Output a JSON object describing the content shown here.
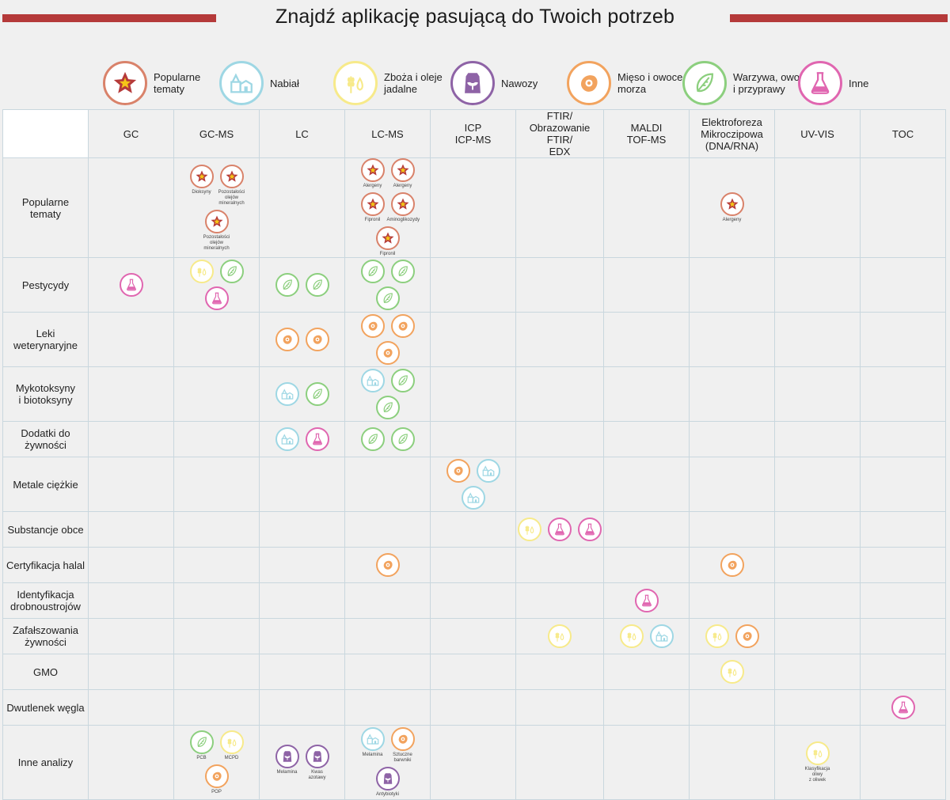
{
  "title": "Znajdź aplikację pasującą do Twoich potrzeb",
  "colors": {
    "accent_bar": "#b53a3a",
    "star": "#d9826a",
    "dairy": "#9ed7e4",
    "grain": "#f7ea8a",
    "fertilizer": "#8e63a6",
    "meat": "#f2a35e",
    "veg": "#8ccf7e",
    "other": "#e066b0"
  },
  "legend": [
    {
      "icon": "star-icon",
      "label_lines": [
        "Popularne",
        "tematy"
      ]
    },
    {
      "icon": "dairy-icon",
      "label_lines": [
        "Nabiał"
      ]
    },
    {
      "icon": "grain-icon",
      "label_lines": [
        "Zboża i oleje",
        "jadalne"
      ]
    },
    {
      "icon": "fertilizer-icon",
      "label_lines": [
        "Nawozy"
      ]
    },
    {
      "icon": "meat-icon",
      "label_lines": [
        "Mięso i owoce",
        "morza"
      ]
    },
    {
      "icon": "veg-icon",
      "label_lines": [
        "Warzywa, owoce",
        "i przyprawy"
      ]
    },
    {
      "icon": "other-icon",
      "label_lines": [
        "Inne"
      ]
    }
  ],
  "columns": [
    [
      "GC"
    ],
    [
      "GC-MS"
    ],
    [
      "LC"
    ],
    [
      "LC-MS"
    ],
    [
      "ICP",
      "ICP-MS"
    ],
    [
      "FTIR/",
      "Obrazowanie FTIR/",
      "EDX"
    ],
    [
      "MALDI",
      "TOF-MS"
    ],
    [
      "Elektroforeza",
      "Mikroczipowa",
      "(DNA/RNA)"
    ],
    [
      "UV-VIS"
    ],
    [
      "TOC"
    ]
  ],
  "rows": [
    {
      "label": [
        "Popularne",
        "tematy"
      ],
      "cells": [
        [],
        [
          {
            "i": "star",
            "c": [
              "Dioksyny"
            ]
          },
          {
            "i": "star",
            "c": [
              "Pozostałości",
              "olejów",
              "mineralnych"
            ]
          },
          {
            "i": "star",
            "c": [
              "Pozostałości",
              "olejów",
              "mineralnych"
            ]
          }
        ],
        [],
        [
          {
            "i": "star",
            "c": [
              "Alergeny"
            ]
          },
          {
            "i": "star",
            "c": [
              "Alergeny"
            ]
          },
          {
            "i": "star",
            "c": [
              "Fipronil"
            ]
          },
          {
            "i": "star",
            "c": [
              "Aminoglikozydy"
            ]
          },
          {
            "i": "star",
            "c": [
              "Fipronil"
            ]
          }
        ],
        [],
        [],
        [],
        [
          {
            "i": "star",
            "c": [
              "Alergeny"
            ]
          }
        ],
        [],
        []
      ]
    },
    {
      "label": [
        "Pestycydy"
      ],
      "cells": [
        [
          {
            "i": "other"
          }
        ],
        [
          {
            "i": "grain"
          },
          {
            "i": "veg"
          },
          {
            "i": "other"
          }
        ],
        [
          {
            "i": "veg"
          },
          {
            "i": "veg"
          }
        ],
        [
          {
            "i": "veg"
          },
          {
            "i": "veg"
          },
          {
            "i": "veg"
          }
        ],
        [],
        [],
        [],
        [],
        [],
        []
      ]
    },
    {
      "label": [
        "Leki",
        "weterynaryjne"
      ],
      "cells": [
        [],
        [],
        [
          {
            "i": "meat"
          },
          {
            "i": "meat"
          }
        ],
        [
          {
            "i": "meat"
          },
          {
            "i": "meat"
          },
          {
            "i": "meat"
          }
        ],
        [],
        [],
        [],
        [],
        [],
        []
      ]
    },
    {
      "label": [
        "Mykotoksyny",
        "i biotoksyny"
      ],
      "cells": [
        [],
        [],
        [
          {
            "i": "dairy"
          },
          {
            "i": "veg"
          }
        ],
        [
          {
            "i": "dairy"
          },
          {
            "i": "veg"
          },
          {
            "i": "veg"
          }
        ],
        [],
        [],
        [],
        [],
        [],
        []
      ]
    },
    {
      "label": [
        "Dodatki do",
        "żywności"
      ],
      "cells": [
        [],
        [],
        [
          {
            "i": "dairy"
          },
          {
            "i": "other"
          }
        ],
        [
          {
            "i": "veg"
          },
          {
            "i": "veg"
          }
        ],
        [],
        [],
        [],
        [],
        [],
        []
      ]
    },
    {
      "label": [
        "Metale ciężkie"
      ],
      "cells": [
        [],
        [],
        [],
        [],
        [
          {
            "i": "meat"
          },
          {
            "i": "dairy"
          },
          {
            "i": "dairy"
          }
        ],
        [],
        [],
        [],
        [],
        []
      ]
    },
    {
      "label": [
        "Substancje obce"
      ],
      "cells": [
        [],
        [],
        [],
        [],
        [],
        [
          {
            "i": "grain"
          },
          {
            "i": "other"
          },
          {
            "i": "other"
          }
        ],
        [],
        [],
        [],
        []
      ]
    },
    {
      "label": [
        "Certyfikacja halal"
      ],
      "cells": [
        [],
        [],
        [],
        [
          {
            "i": "meat"
          }
        ],
        [],
        [],
        [],
        [
          {
            "i": "meat"
          }
        ],
        [],
        []
      ]
    },
    {
      "label": [
        "Identyfikacja",
        "drobnoustrojów"
      ],
      "cells": [
        [],
        [],
        [],
        [],
        [],
        [],
        [
          {
            "i": "other"
          }
        ],
        [],
        [],
        []
      ]
    },
    {
      "label": [
        "Zafałszowania",
        "żywności"
      ],
      "cells": [
        [],
        [],
        [],
        [],
        [],
        [
          {
            "i": "grain"
          }
        ],
        [
          {
            "i": "grain"
          },
          {
            "i": "dairy"
          }
        ],
        [
          {
            "i": "grain"
          },
          {
            "i": "meat"
          }
        ],
        [],
        []
      ]
    },
    {
      "label": [
        "GMO"
      ],
      "cells": [
        [],
        [],
        [],
        [],
        [],
        [],
        [],
        [
          {
            "i": "grain"
          }
        ],
        [],
        []
      ]
    },
    {
      "label": [
        "Dwutlenek węgla"
      ],
      "cells": [
        [],
        [],
        [],
        [],
        [],
        [],
        [],
        [],
        [],
        [
          {
            "i": "other"
          }
        ]
      ]
    },
    {
      "label": [
        "Inne analizy"
      ],
      "cells": [
        [],
        [
          {
            "i": "veg",
            "c": [
              "PCB"
            ]
          },
          {
            "i": "grain",
            "c": [
              "MCPD"
            ]
          },
          {
            "i": "meat",
            "c": [
              "POP"
            ]
          }
        ],
        [
          {
            "i": "fertilizer",
            "c": [
              "Melamina"
            ]
          },
          {
            "i": "fertilizer",
            "c": [
              "Kwas",
              "azotawy"
            ]
          }
        ],
        [
          {
            "i": "dairy",
            "c": [
              "Melamina"
            ]
          },
          {
            "i": "meat",
            "c": [
              "Sztuczne",
              "barwniki"
            ]
          },
          {
            "i": "fertilizer",
            "c": [
              "Antybiotyki"
            ]
          }
        ],
        [],
        [],
        [],
        [],
        [
          {
            "i": "grain",
            "c": [
              "Klasyfikacja oliwy",
              "z oliwek"
            ]
          }
        ],
        []
      ]
    }
  ]
}
